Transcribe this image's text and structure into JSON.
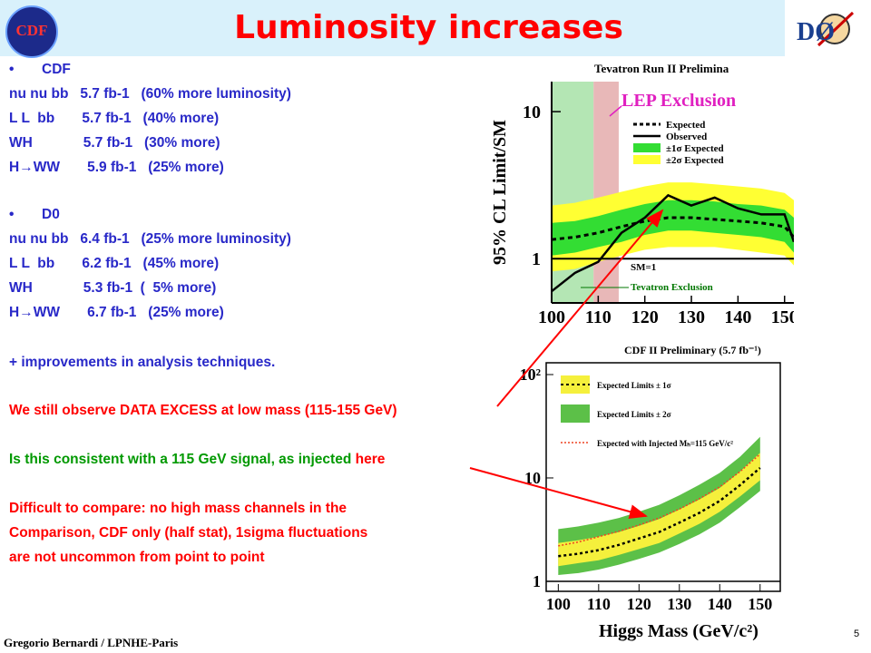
{
  "title": "Luminosity increases",
  "logos": {
    "cdf": "CDF",
    "d0": "DØ"
  },
  "text_lines": [
    {
      "bullet": true,
      "text": "CDF",
      "color": "blue"
    },
    {
      "text": "nu nu bb   5.7 fb-1   (60% more luminosity)",
      "color": "blue"
    },
    {
      "text": "L L  bb       5.7 fb-1   (40% more)",
      "color": "blue"
    },
    {
      "text": "WH             5.7 fb-1   (30% more)",
      "color": "blue"
    },
    {
      "text": "H→WW       5.9 fb-1   (25% more)",
      "color": "blue"
    },
    {
      "bullet": true,
      "text": "D0",
      "color": "blue"
    },
    {
      "text": "nu nu bb   6.4 fb-1   (25% more luminosity)",
      "color": "blue"
    },
    {
      "text": "L L  bb       6.2 fb-1   (45% more)",
      "color": "blue"
    },
    {
      "text": "WH             5.3 fb-1  (  5% more)",
      "color": "blue"
    },
    {
      "text": "H→WW       6.7 fb-1   (25% more)",
      "color": "blue"
    },
    {
      "text": "+ improvements in analysis techniques.",
      "color": "blue"
    },
    {
      "text": "We still observe DATA EXCESS at low mass (115-155 GeV)",
      "color": "red"
    },
    {
      "text_green": "Is this consistent with a 115 GeV signal, as injected ",
      "text_red": "here"
    },
    {
      "text": "Difficult to compare: no high mass channels in the",
      "color": "red"
    },
    {
      "text": "Comparison, CDF only (half stat), 1sigma fluctuations",
      "color": "red"
    },
    {
      "text": "are not uncommon from point to point",
      "color": "red"
    }
  ],
  "footer": {
    "author": "Gregorio Bernardi / LPNHE-Paris",
    "page": "5"
  },
  "chart_data": [
    {
      "type": "line",
      "title": "Tevatron Run II Prelimina",
      "ylabel": "95% CL Limit/SM",
      "yscale": "log",
      "xlim": [
        100,
        152
      ],
      "ylim": [
        0.5,
        16
      ],
      "x_ticks": [
        100,
        110,
        120,
        130,
        140,
        150
      ],
      "y_ticks": [
        {
          "v": 1,
          "label": "1"
        },
        {
          "v": 10,
          "label": "10"
        }
      ],
      "annotations": {
        "lep": "LEP Exclusion",
        "tev": "Tevatron Exclusion",
        "sm": "SM=1"
      },
      "legend": [
        "Expected",
        "Observed",
        "±1σ Expected",
        "±2σ Expected"
      ],
      "x": [
        100,
        105,
        110,
        115,
        120,
        125,
        130,
        135,
        140,
        145,
        150,
        152
      ],
      "expected": [
        1.35,
        1.4,
        1.5,
        1.65,
        1.8,
        1.9,
        1.9,
        1.85,
        1.8,
        1.75,
        1.65,
        1.4
      ],
      "observed": [
        0.6,
        0.8,
        0.95,
        1.5,
        1.9,
        2.7,
        2.3,
        2.6,
        2.2,
        2.0,
        2.0,
        1.3
      ],
      "band1_lo": [
        1.05,
        1.1,
        1.2,
        1.3,
        1.45,
        1.55,
        1.55,
        1.5,
        1.45,
        1.4,
        1.3,
        1.1
      ],
      "band1_hi": [
        1.75,
        1.8,
        1.95,
        2.15,
        2.35,
        2.5,
        2.5,
        2.45,
        2.35,
        2.3,
        2.15,
        1.9
      ],
      "band2_lo": [
        0.82,
        0.85,
        0.95,
        1.05,
        1.15,
        1.2,
        1.2,
        1.2,
        1.15,
        1.1,
        1.05,
        0.9
      ],
      "band2_hi": [
        2.3,
        2.4,
        2.6,
        2.85,
        3.1,
        3.3,
        3.3,
        3.2,
        3.1,
        3.0,
        2.8,
        2.5
      ]
    },
    {
      "type": "line",
      "title": "CDF II Preliminary (5.7 fb⁻¹)",
      "xlabel": "Higgs Mass (GeV/c²)",
      "yscale": "log",
      "xlim": [
        97,
        155
      ],
      "ylim": [
        0.8,
        130
      ],
      "x_ticks": [
        100,
        110,
        120,
        130,
        140,
        150
      ],
      "y_ticks": [
        {
          "v": 1,
          "label": "1"
        },
        {
          "v": 10,
          "label": "10"
        },
        {
          "v": 100,
          "label": "10²"
        }
      ],
      "legend": [
        "Expected Limits ± 1σ",
        "Expected Limits ± 2σ",
        "Expected with Injected Mₕ=115 GeV/c²"
      ],
      "x": [
        100,
        105,
        110,
        115,
        120,
        125,
        130,
        135,
        140,
        145,
        150
      ],
      "expected": [
        1.75,
        1.85,
        2.0,
        2.25,
        2.6,
        3.0,
        3.7,
        4.6,
        6.0,
        8.5,
        12.5
      ],
      "injected": [
        2.2,
        2.4,
        2.7,
        3.05,
        3.5,
        4.1,
        5.0,
        6.3,
        8.2,
        11.5,
        17.0
      ],
      "band1_lo": [
        1.4,
        1.5,
        1.6,
        1.8,
        2.05,
        2.35,
        2.9,
        3.6,
        4.7,
        6.6,
        9.5
      ],
      "band1_hi": [
        2.35,
        2.5,
        2.7,
        3.0,
        3.45,
        4.0,
        4.95,
        6.2,
        8.0,
        11.5,
        17.5
      ],
      "band2_lo": [
        1.15,
        1.2,
        1.3,
        1.45,
        1.65,
        1.9,
        2.3,
        2.85,
        3.7,
        5.2,
        7.5
      ],
      "band2_hi": [
        3.2,
        3.4,
        3.7,
        4.1,
        4.7,
        5.5,
        6.8,
        8.6,
        11.2,
        16.0,
        25.0
      ]
    }
  ]
}
